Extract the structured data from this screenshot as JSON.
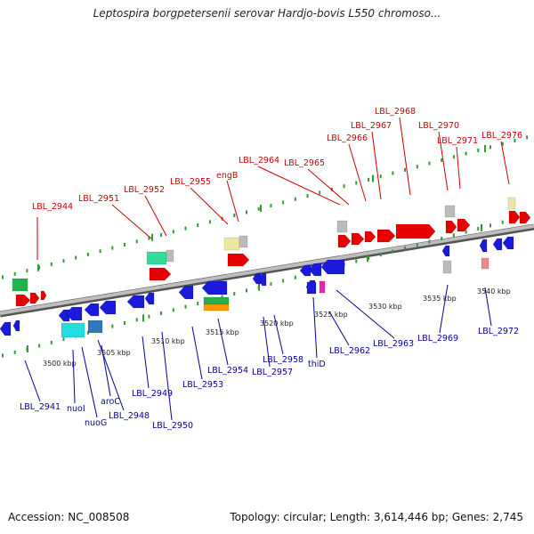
{
  "title": "Leptospira borgpetersenii serovar Hardjo-bovis L550 chromoso...",
  "footer": {
    "accession": "Accession: NC_008508",
    "summary": "Topology: circular; Length: 3,614,446 bp; Genes: 2,745"
  },
  "colors": {
    "top_label": "#cc0000",
    "bottom_label": "#000099",
    "axis": "#888888",
    "tick": "#339933",
    "ruler_text": "#222222"
  },
  "ruler": [
    "3500 kbp",
    "3505 kbp",
    "3510 kbp",
    "3515 kbp",
    "3520 kbp",
    "3525 kbp",
    "3530 kbp",
    "3535 kbp",
    "3540 kbp"
  ],
  "top_labels": [
    "LBL_2944",
    "LBL_2951",
    "LBL_2952",
    "LBL_2955",
    "engB",
    "LBL_2964",
    "LBL_2965",
    "LBL_2966",
    "LBL_2967",
    "LBL_2968",
    "LBL_2970",
    "LBL_2971",
    "LBL_2976"
  ],
  "bottom_labels": [
    "LBL_2941",
    "nuoI",
    "nuoG",
    "aroC",
    "LBL_2948",
    "LBL_2949",
    "LBL_2950",
    "LBL_2953",
    "LBL_2954",
    "LBL_2957",
    "LBL_2958",
    "thiD",
    "LBL_2962",
    "LBL_2963",
    "LBL_2969",
    "LBL_2972"
  ]
}
